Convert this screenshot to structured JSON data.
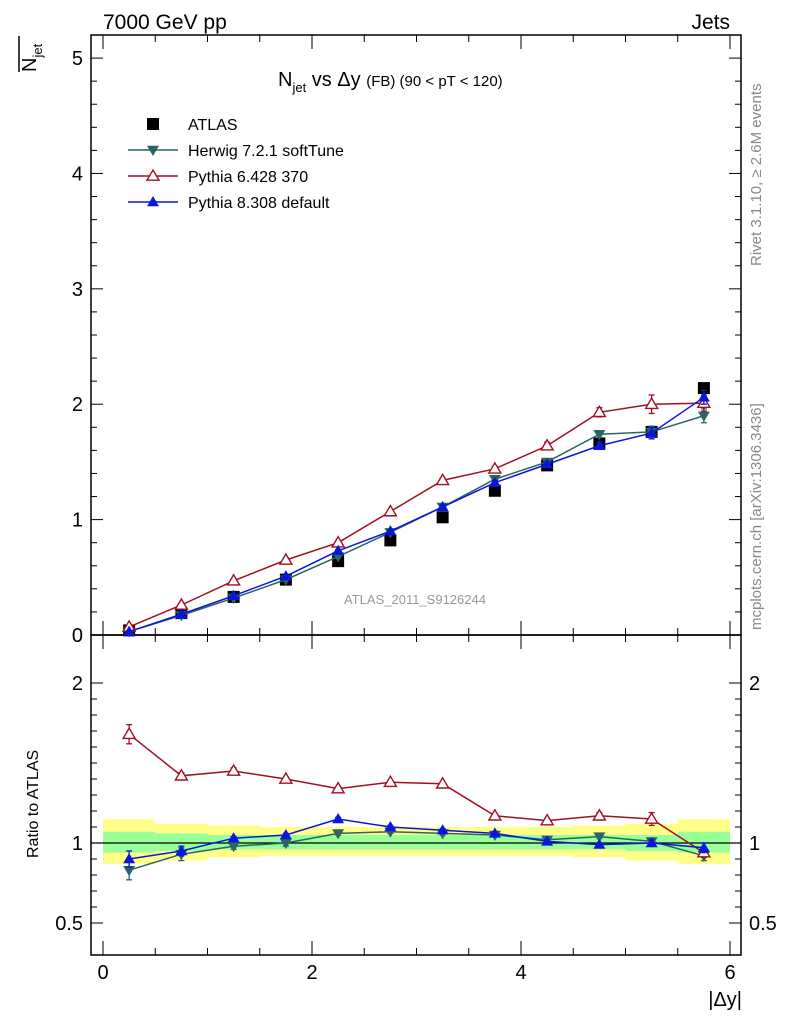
{
  "header": {
    "left": "7000 GeV pp",
    "right": "Jets"
  },
  "side_text": {
    "rivet": "Rivet 3.1.10, ≥ 2.6M events",
    "mcplots": "mcplots.cern.ch [arXiv:1306.3436]"
  },
  "watermark": "ATLAS_2011_S9126244",
  "colors": {
    "atlas": "#000000",
    "herwig": "#2a6464",
    "pythia6": "#a01020",
    "pythia8": "#0a16d8",
    "band_inner": "#99ff99",
    "band_outer": "#ffff88"
  },
  "chart_data": [
    {
      "type": "line",
      "title": "N_jet vs Δy (FB) (90 < pT < 120)",
      "ylabel": "N_jet (overlined)",
      "xlabel": "|Δy|",
      "xlim": [
        0,
        6
      ],
      "ylim": [
        0,
        5.2
      ],
      "yticks": [
        0,
        1,
        2,
        3,
        4,
        5
      ],
      "legend_position": "top-left",
      "x": [
        0.25,
        0.75,
        1.25,
        1.75,
        2.25,
        2.75,
        3.25,
        3.75,
        4.25,
        4.75,
        5.25,
        5.75
      ],
      "series": [
        {
          "name": "ATLAS",
          "marker": "square",
          "color": "#000000",
          "values": [
            0.04,
            0.19,
            0.33,
            0.48,
            0.64,
            0.82,
            1.02,
            1.25,
            1.47,
            1.66,
            1.76,
            2.14
          ]
        },
        {
          "name": "Herwig 7.2.1 softTune",
          "marker": "triangle-down",
          "color": "#2a6464",
          "values": [
            0.03,
            0.17,
            0.32,
            0.48,
            0.68,
            0.89,
            1.11,
            1.35,
            1.5,
            1.74,
            1.76,
            1.9
          ],
          "errors": [
            0.005,
            0.01,
            0.01,
            0.01,
            0.01,
            0.01,
            0.02,
            0.02,
            0.02,
            0.03,
            0.05,
            0.06
          ]
        },
        {
          "name": "Pythia 6.428 370",
          "marker": "triangle-open",
          "color": "#a01020",
          "values": [
            0.07,
            0.26,
            0.47,
            0.65,
            0.8,
            1.07,
            1.34,
            1.44,
            1.64,
            1.93,
            2.0,
            2.01
          ],
          "errors": [
            0.005,
            0.01,
            0.01,
            0.01,
            0.01,
            0.01,
            0.02,
            0.02,
            0.03,
            0.04,
            0.08,
            0.07
          ]
        },
        {
          "name": "Pythia 8.308 default",
          "marker": "triangle-up",
          "color": "#0a16d8",
          "values": [
            0.03,
            0.18,
            0.34,
            0.51,
            0.73,
            0.9,
            1.11,
            1.32,
            1.48,
            1.64,
            1.75,
            2.06
          ],
          "errors": [
            0.005,
            0.01,
            0.01,
            0.01,
            0.01,
            0.01,
            0.02,
            0.02,
            0.02,
            0.03,
            0.05,
            0.06
          ]
        }
      ]
    },
    {
      "type": "line",
      "title": "",
      "ylabel": "Ratio to ATLAS",
      "xlabel": "|Δy|",
      "xlim": [
        0,
        6
      ],
      "ylim": [
        0.3,
        2.3
      ],
      "yticks": [
        0.5,
        1,
        2
      ],
      "ytick_labels": [
        "0.5",
        "1",
        "2"
      ],
      "xticks": [
        0,
        2,
        4,
        6
      ],
      "x": [
        0.25,
        0.75,
        1.25,
        1.75,
        2.25,
        2.75,
        3.25,
        3.75,
        4.25,
        4.75,
        5.25,
        5.75
      ],
      "bands": {
        "edges": [
          0,
          0.5,
          1.0,
          1.5,
          2.0,
          2.5,
          3.0,
          3.5,
          4.0,
          4.5,
          5.0,
          5.5,
          6.0
        ],
        "inner": [
          [
            0.94,
            1.07
          ],
          [
            0.95,
            1.06
          ],
          [
            0.96,
            1.05
          ],
          [
            0.96,
            1.05
          ],
          [
            0.96,
            1.05
          ],
          [
            0.96,
            1.05
          ],
          [
            0.96,
            1.05
          ],
          [
            0.96,
            1.05
          ],
          [
            0.96,
            1.05
          ],
          [
            0.96,
            1.05
          ],
          [
            0.95,
            1.05
          ],
          [
            0.94,
            1.07
          ]
        ],
        "outer": [
          [
            0.87,
            1.15
          ],
          [
            0.89,
            1.12
          ],
          [
            0.91,
            1.11
          ],
          [
            0.92,
            1.1
          ],
          [
            0.92,
            1.1
          ],
          [
            0.92,
            1.1
          ],
          [
            0.92,
            1.1
          ],
          [
            0.92,
            1.1
          ],
          [
            0.92,
            1.1
          ],
          [
            0.91,
            1.11
          ],
          [
            0.89,
            1.12
          ],
          [
            0.87,
            1.15
          ]
        ]
      },
      "series": [
        {
          "name": "Herwig 7.2.1 softTune",
          "color": "#2a6464",
          "marker": "triangle-down",
          "values": [
            0.83,
            0.93,
            0.98,
            1.0,
            1.06,
            1.07,
            1.06,
            1.05,
            1.02,
            1.04,
            1.01,
            0.92
          ],
          "errors": [
            0.06,
            0.04,
            0.02,
            0.02,
            0.01,
            0.01,
            0.01,
            0.01,
            0.01,
            0.01,
            0.02,
            0.03
          ]
        },
        {
          "name": "Pythia 6.428 370",
          "color": "#a01020",
          "marker": "triangle-open",
          "values": [
            1.68,
            1.42,
            1.45,
            1.4,
            1.34,
            1.38,
            1.37,
            1.17,
            1.14,
            1.17,
            1.15,
            0.94
          ],
          "errors": [
            0.06,
            0.02,
            0.02,
            0.01,
            0.01,
            0.01,
            0.01,
            0.01,
            0.01,
            0.02,
            0.04,
            0.03
          ]
        },
        {
          "name": "Pythia 8.308 default",
          "color": "#0a16d8",
          "marker": "triangle-up",
          "values": [
            0.9,
            0.95,
            1.03,
            1.05,
            1.15,
            1.1,
            1.08,
            1.06,
            1.01,
            0.99,
            1.0,
            0.97
          ],
          "errors": [
            0.05,
            0.03,
            0.01,
            0.01,
            0.01,
            0.01,
            0.01,
            0.01,
            0.01,
            0.01,
            0.02,
            0.03
          ]
        }
      ]
    }
  ]
}
